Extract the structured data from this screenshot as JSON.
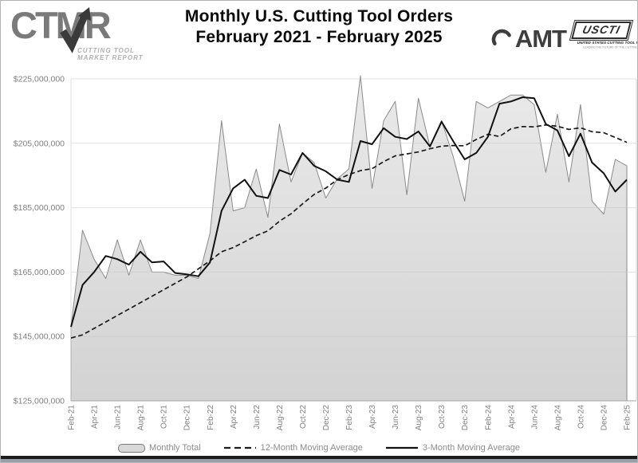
{
  "header": {
    "title_line1": "Monthly U.S. Cutting Tool Orders",
    "title_line2": "February 2021 - February 2025",
    "ctmr_logo": {
      "text": "CTMR",
      "tagline_line1": "CUTTING TOOL",
      "tagline_line2": "MARKET REPORT"
    },
    "amt_logo": {
      "text": "AMT"
    },
    "uscti_logo": {
      "text": "USCTI",
      "subtitle": "UNITED STATES CUTTING TOOL INSTITUTE",
      "tagline": "LEADING THE FUTURE OF THE CUTTING TOOL INDUSTRY"
    }
  },
  "legend": {
    "monthly": "Monthly Total",
    "ma12": "12-Month Moving Average",
    "ma3": "3-Month Moving Average"
  },
  "colors": {
    "area_fill_top": "#e8e8e8",
    "area_fill_bottom": "#cfcfcf",
    "area_stroke": "#8a8a8a",
    "line_color": "#141414",
    "gridline": "#c9c9c9",
    "axis_text": "#7f7f7f"
  },
  "chart_data": {
    "type": "area",
    "title": "Monthly U.S. Cutting Tool Orders",
    "subtitle": "February 2021 - February 2025",
    "unit": "USD millions",
    "grid": true,
    "legend_position": "bottom",
    "ylim_millions": [
      125,
      225
    ],
    "y_tick_values_millions": [
      125,
      145,
      165,
      185,
      205,
      225
    ],
    "y_tick_labels": [
      "$125,000,000",
      "$145,000,000",
      "$165,000,000",
      "$185,000,000",
      "$205,000,000",
      "$225,000,000"
    ],
    "x_tick_every": 2,
    "x": [
      "Feb-21",
      "Mar-21",
      "Apr-21",
      "May-21",
      "Jun-21",
      "Jul-21",
      "Aug-21",
      "Sep-21",
      "Oct-21",
      "Nov-21",
      "Dec-21",
      "Jan-22",
      "Feb-22",
      "Mar-22",
      "Apr-22",
      "May-22",
      "Jun-22",
      "Jul-22",
      "Aug-22",
      "Sep-22",
      "Oct-22",
      "Nov-22",
      "Dec-22",
      "Jan-23",
      "Feb-23",
      "Mar-23",
      "Apr-23",
      "May-23",
      "Jun-23",
      "Jul-23",
      "Aug-23",
      "Sep-23",
      "Oct-23",
      "Nov-23",
      "Dec-23",
      "Jan-24",
      "Feb-24",
      "Mar-24",
      "Apr-24",
      "May-24",
      "Jun-24",
      "Jul-24",
      "Aug-24",
      "Sep-24",
      "Oct-24",
      "Nov-24",
      "Dec-24",
      "Jan-25",
      "Feb-25"
    ],
    "series": [
      {
        "name": "Monthly Total",
        "type": "area",
        "fill": "#dcdcdc",
        "stroke": "#8a8a8a",
        "values_millions": [
          148,
          178,
          169,
          163,
          175,
          164,
          175,
          165,
          165,
          164,
          164,
          163,
          177,
          212,
          184,
          185,
          197,
          182,
          211,
          193,
          202,
          199,
          188,
          194,
          197,
          226,
          191,
          212,
          218,
          189,
          219,
          204,
          212,
          201,
          187,
          218,
          216,
          218,
          220,
          220,
          217,
          196,
          214,
          193,
          217,
          187,
          183,
          200,
          198
        ]
      },
      {
        "name": "12-Month Moving Average",
        "type": "line-dashed",
        "stroke": "#1a1a1a",
        "values_millions": [
          144.5,
          145.5,
          147.5,
          149.5,
          151.5,
          153.5,
          155.5,
          157.5,
          159.5,
          161.5,
          163.5,
          166,
          168.5,
          171.3,
          172.6,
          174.4,
          176.3,
          177.8,
          180.8,
          183.1,
          186.2,
          189.1,
          191.1,
          193.7,
          195.3,
          196.5,
          197.1,
          199.3,
          201.1,
          201.7,
          202.3,
          203.3,
          204.1,
          204.3,
          204.2,
          206.2,
          207.8,
          207.1,
          209.5,
          210.2,
          210.1,
          210.7,
          210.3,
          209.3,
          209.8,
          208.6,
          208.3,
          206.8,
          205.3
        ]
      },
      {
        "name": "3-Month Moving Average",
        "type": "line",
        "stroke": "#111111",
        "values_millions": [
          148,
          161,
          165,
          170,
          169,
          167.3,
          171.3,
          168,
          168.3,
          164.7,
          164.3,
          163.7,
          168,
          184,
          191,
          193.7,
          188.7,
          188,
          196.7,
          195.3,
          202,
          198,
          196.3,
          193.7,
          193,
          205.7,
          204.7,
          209.7,
          207,
          206.3,
          208.7,
          204,
          211.7,
          205.7,
          200,
          202,
          207,
          217.3,
          218,
          219.3,
          219,
          211,
          209,
          201,
          208,
          199,
          195.7,
          190,
          193.7
        ]
      }
    ]
  }
}
